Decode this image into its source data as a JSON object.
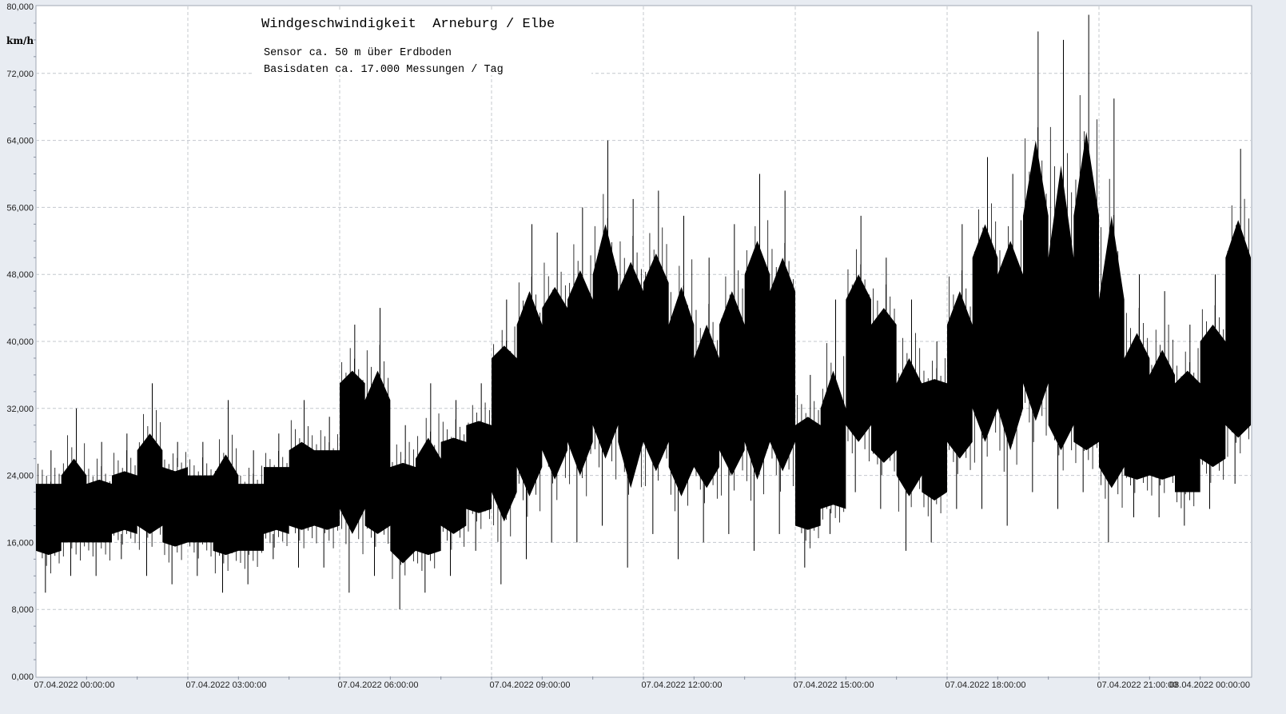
{
  "chart_data": {
    "type": "line",
    "title": "Windgeschwindigkeit  Arneburg / Elbe",
    "subtitles": [
      "Sensor ca. 50 m über Erdboden",
      "Basisdaten ca. 17.000 Messungen / Tag"
    ],
    "ylabel": "km/h",
    "xlabel": "",
    "ylim": [
      0,
      80
    ],
    "yticks": [
      "0,000",
      "8,000",
      "16,000",
      "24,000",
      "32,000",
      "40,000",
      "48,000",
      "56,000",
      "64,000",
      "72,000",
      "80,000"
    ],
    "xlim_hours": [
      0,
      24
    ],
    "xticks": [
      "07.04.2022  00:00:00",
      "07.04.2022  03:00:00",
      "07.04.2022  06:00:00",
      "07.04.2022  09:00:00",
      "07.04.2022  12:00:00",
      "07.04.2022  15:00:00",
      "07.04.2022  18:00:00",
      "07.04.2022  21:00:00",
      "08.04.2022  00:00:00"
    ],
    "grid": true,
    "line_color": "#000000",
    "series_note_bins": "30-minute bins: [min, band_low, band_high, max]",
    "bins": [
      [
        10,
        15,
        23,
        27
      ],
      [
        12,
        16,
        24,
        32
      ],
      [
        12,
        16,
        23,
        28
      ],
      [
        14,
        17,
        24,
        29
      ],
      [
        12,
        18,
        27,
        35
      ],
      [
        11,
        16,
        25,
        28
      ],
      [
        12,
        16,
        24,
        28
      ],
      [
        10,
        15,
        24,
        33
      ],
      [
        11,
        15,
        23,
        27
      ],
      [
        14,
        17,
        25,
        29
      ],
      [
        13,
        18,
        27,
        33
      ],
      [
        13,
        18,
        27,
        31
      ],
      [
        10,
        20,
        35,
        42
      ],
      [
        12,
        18,
        33,
        44
      ],
      [
        8,
        15,
        25,
        30
      ],
      [
        10,
        15,
        26,
        35
      ],
      [
        12,
        18,
        28,
        33
      ],
      [
        15,
        20,
        30,
        35
      ],
      [
        11,
        22,
        38,
        45
      ],
      [
        14,
        25,
        42,
        54
      ],
      [
        16,
        27,
        44,
        53
      ],
      [
        16,
        28,
        45,
        56
      ],
      [
        18,
        30,
        48,
        64
      ],
      [
        13,
        28,
        46,
        57
      ],
      [
        17,
        28,
        47,
        58
      ],
      [
        14,
        25,
        42,
        55
      ],
      [
        16,
        25,
        38,
        50
      ],
      [
        17,
        27,
        42,
        54
      ],
      [
        15,
        28,
        48,
        60
      ],
      [
        17,
        28,
        46,
        58
      ],
      [
        13,
        18,
        30,
        36
      ],
      [
        17,
        20,
        32,
        45
      ],
      [
        22,
        30,
        45,
        55
      ],
      [
        20,
        27,
        42,
        50
      ],
      [
        15,
        24,
        35,
        45
      ],
      [
        16,
        22,
        35,
        40
      ],
      [
        20,
        28,
        42,
        54
      ],
      [
        20,
        32,
        50,
        62
      ],
      [
        18,
        32,
        48,
        60
      ],
      [
        22,
        35,
        55,
        77
      ],
      [
        20,
        30,
        50,
        76
      ],
      [
        22,
        28,
        55,
        79
      ],
      [
        16,
        25,
        45,
        69
      ],
      [
        19,
        24,
        38,
        48
      ],
      [
        19,
        24,
        36,
        46
      ],
      [
        18,
        22,
        35,
        42
      ],
      [
        20,
        26,
        40,
        48
      ],
      [
        23,
        30,
        50,
        63
      ]
    ]
  }
}
